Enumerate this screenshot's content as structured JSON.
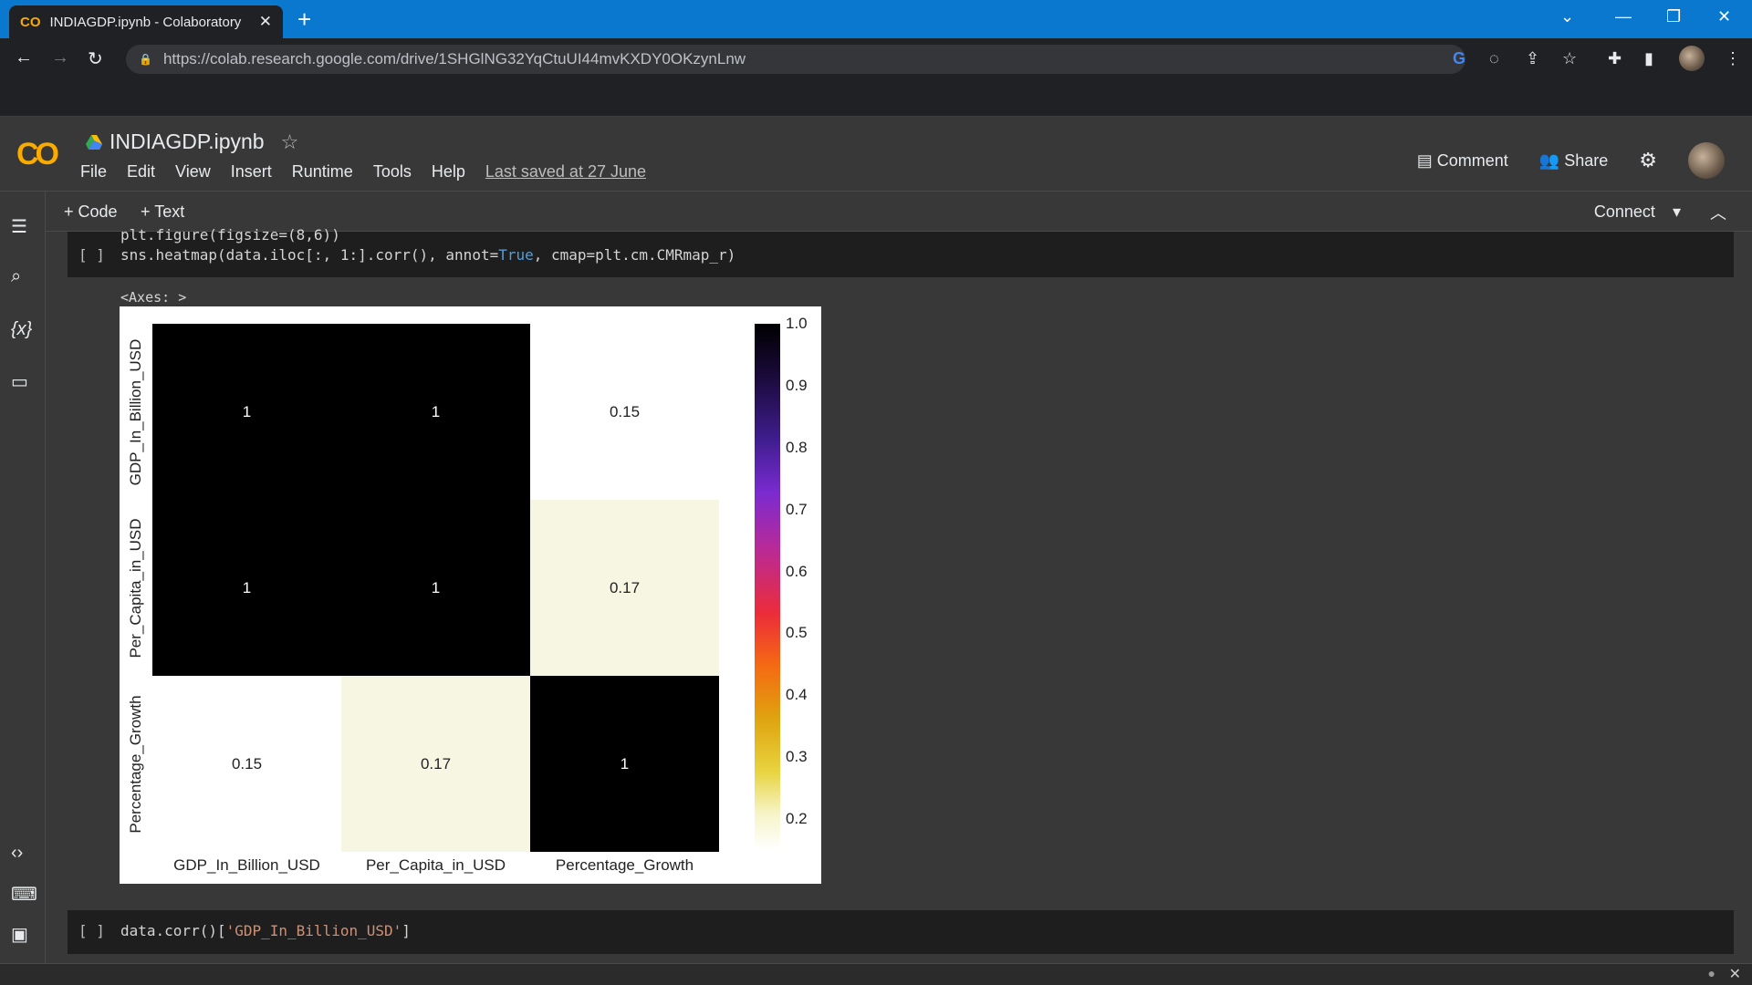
{
  "browser": {
    "tab_title": "INDIAGDP.ipynb - Colaboratory",
    "url": "https://colab.research.google.com/drive/1SHGlNG32YqCtuUI44mvKXDY0OKzynLnw"
  },
  "colab": {
    "logo_text": "CO",
    "notebook_name": "INDIAGDP.ipynb",
    "menu": [
      "File",
      "Edit",
      "View",
      "Insert",
      "Runtime",
      "Tools",
      "Help"
    ],
    "last_saved": "Last saved at 27 June",
    "comment_label": "Comment",
    "share_label": "Share"
  },
  "toolbar": {
    "add_code": "+ Code",
    "add_text": "+ Text",
    "connect": "Connect"
  },
  "cells": [
    {
      "bracket": "[ ]",
      "partial_line": "plt.figure(figsize=(8,6))",
      "code_line_pre": "sns.heatmap(data.iloc[:, 1:].corr(), annot=",
      "code_kw": "True",
      "code_line_post": ", cmap=plt.cm.CMRmap_r)",
      "output_text": "<Axes: >"
    },
    {
      "bracket": "[ ]",
      "code_pre": "data.corr()[",
      "code_str": "'GDP_In_Billion_USD'",
      "code_post": "]"
    }
  ],
  "chart_data": {
    "type": "heatmap",
    "title": "",
    "rows": [
      "GDP_In_Billion_USD",
      "Per_Capita_in_USD",
      "Percentage_Growth"
    ],
    "columns": [
      "GDP_In_Billion_USD",
      "Per_Capita_in_USD",
      "Percentage_Growth"
    ],
    "values": [
      [
        1,
        1,
        0.15
      ],
      [
        1,
        1,
        0.17
      ],
      [
        0.15,
        0.17,
        1
      ]
    ],
    "annotations": [
      [
        "1",
        "1",
        "0.15"
      ],
      [
        "1",
        "1",
        "0.17"
      ],
      [
        "0.15",
        "0.17",
        "1"
      ]
    ],
    "colormap": "CMRmap_r",
    "colorbar_range": [
      0.15,
      1.0
    ],
    "colorbar_ticks": [
      "1.0",
      "0.9",
      "0.8",
      "0.7",
      "0.6",
      "0.5",
      "0.4",
      "0.3",
      "0.2"
    ],
    "colors": {
      "high": "#000000",
      "mid_low": "#f6f6e3",
      "low": "#ffffff"
    }
  }
}
